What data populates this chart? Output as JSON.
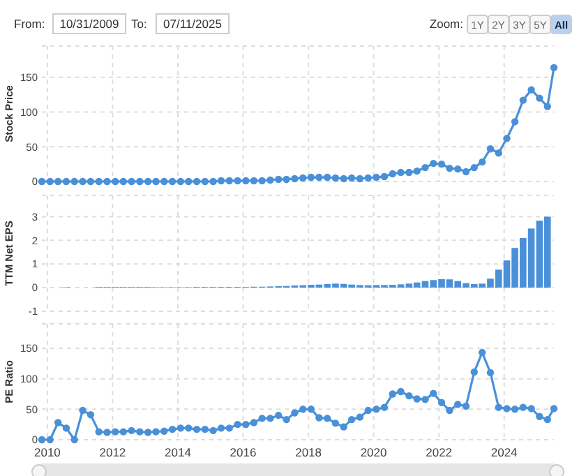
{
  "chart_data": [
    {
      "type": "line",
      "ylabel": "Stock Price",
      "color": "#4a90d9",
      "marker": "circle",
      "grid": true,
      "tick_labels": "y",
      "annotations": [
        "From:",
        "10/31/2009",
        "To:",
        "07/11/2025",
        "Zoom:",
        "1Y",
        "2Y",
        "3Y",
        "5Y",
        "All"
      ],
      "x": [
        "2009-10-31",
        "2010-01-31",
        "2010-04-30",
        "2010-07-31",
        "2010-10-31",
        "2011-01-31",
        "2011-04-30",
        "2011-07-31",
        "2011-10-31",
        "2012-01-31",
        "2012-04-30",
        "2012-07-31",
        "2012-10-31",
        "2013-01-31",
        "2013-04-30",
        "2013-07-31",
        "2013-10-31",
        "2014-01-31",
        "2014-04-30",
        "2014-07-31",
        "2014-10-31",
        "2015-01-31",
        "2015-04-30",
        "2015-07-31",
        "2015-10-31",
        "2016-01-31",
        "2016-04-30",
        "2016-07-31",
        "2016-10-31",
        "2017-01-31",
        "2017-04-30",
        "2017-07-31",
        "2017-10-31",
        "2018-01-31",
        "2018-04-30",
        "2018-07-31",
        "2018-10-31",
        "2019-01-31",
        "2019-04-30",
        "2019-07-31",
        "2019-10-31",
        "2020-01-31",
        "2020-04-30",
        "2020-07-31",
        "2020-10-31",
        "2021-01-31",
        "2021-04-30",
        "2021-07-31",
        "2021-10-31",
        "2022-01-31",
        "2022-04-30",
        "2022-07-31",
        "2022-10-31",
        "2023-01-31",
        "2023-04-30",
        "2023-07-31",
        "2023-10-31",
        "2024-01-31",
        "2024-04-30",
        "2024-07-31",
        "2024-10-31",
        "2025-01-31",
        "2025-04-30",
        "2025-07-11"
      ],
      "values": [
        0,
        0,
        0,
        0,
        0,
        0,
        0,
        0,
        0,
        0,
        0,
        0,
        0,
        0,
        0,
        0,
        0,
        0,
        0,
        0,
        0,
        0,
        1,
        1,
        1,
        1,
        1,
        1,
        2,
        3,
        3,
        4,
        5,
        6,
        6,
        6,
        5,
        4,
        5,
        4,
        5,
        6,
        7,
        11,
        13,
        13,
        15,
        20,
        26,
        25,
        19,
        18,
        14,
        20,
        28,
        47,
        41,
        62,
        86,
        117,
        132,
        120,
        108,
        164
      ],
      "xlim": [
        "2009-10-31",
        "2025-07-11"
      ],
      "xticks": [
        "2010",
        "2012",
        "2014",
        "2016",
        "2018",
        "2020",
        "2022",
        "2024"
      ],
      "ylim": [
        0,
        195
      ],
      "yticks": [
        0,
        50,
        100,
        150
      ]
    },
    {
      "type": "bar",
      "ylabel": "TTM Net EPS",
      "color": "#4a90d9",
      "grid": true,
      "tick_labels": "y",
      "x": [
        "2010-07-31",
        "2010-10-31",
        "2011-01-31",
        "2011-04-30",
        "2011-07-31",
        "2011-10-31",
        "2012-01-31",
        "2012-04-30",
        "2012-07-31",
        "2012-10-31",
        "2013-01-31",
        "2013-04-30",
        "2013-07-31",
        "2013-10-31",
        "2014-01-31",
        "2014-04-30",
        "2014-07-31",
        "2014-10-31",
        "2015-01-31",
        "2015-04-30",
        "2015-07-31",
        "2015-10-31",
        "2016-01-31",
        "2016-04-30",
        "2016-07-31",
        "2016-10-31",
        "2017-01-31",
        "2017-04-30",
        "2017-07-31",
        "2017-10-31",
        "2018-01-31",
        "2018-04-30",
        "2018-07-31",
        "2018-10-31",
        "2019-01-31",
        "2019-04-30",
        "2019-07-31",
        "2019-10-31",
        "2020-01-31",
        "2020-04-30",
        "2020-07-31",
        "2020-10-31",
        "2021-01-31",
        "2021-04-30",
        "2021-07-31",
        "2021-10-31",
        "2022-01-31",
        "2022-04-30",
        "2022-07-31",
        "2022-10-31",
        "2023-01-31",
        "2023-04-30",
        "2023-07-31",
        "2023-10-31",
        "2024-01-31",
        "2024-04-30",
        "2024-07-31",
        "2024-10-31",
        "2025-01-31",
        "2025-04-30"
      ],
      "values": [
        0.02,
        null,
        null,
        null,
        0.03,
        0.03,
        0.03,
        0.03,
        0.03,
        0.03,
        0.03,
        0.02,
        0.02,
        0.02,
        0.02,
        0.02,
        0.03,
        0.03,
        0.03,
        0.03,
        0.03,
        0.03,
        0.03,
        0.04,
        0.04,
        0.05,
        0.06,
        0.07,
        0.09,
        0.1,
        0.12,
        0.13,
        0.15,
        0.17,
        0.16,
        0.13,
        0.11,
        0.1,
        0.11,
        0.11,
        0.12,
        0.14,
        0.17,
        0.22,
        0.28,
        0.32,
        0.36,
        0.35,
        0.28,
        0.19,
        0.15,
        0.17,
        0.38,
        0.76,
        1.15,
        1.68,
        2.1,
        2.5,
        2.83,
        3.0
      ],
      "xlim": [
        "2009-10-31",
        "2025-07-11"
      ],
      "xticks": [
        "2010",
        "2012",
        "2014",
        "2016",
        "2018",
        "2020",
        "2022",
        "2024"
      ],
      "ylim": [
        -1,
        3.9
      ],
      "yticks": [
        -1,
        0,
        1,
        2,
        3
      ]
    },
    {
      "type": "line",
      "ylabel": "PE Ratio",
      "color": "#4a90d9",
      "marker": "circle",
      "grid": true,
      "x": [
        "2009-10-31",
        "2010-01-31",
        "2010-04-30",
        "2010-07-31",
        "2010-10-31",
        "2011-01-31",
        "2011-04-30",
        "2011-07-31",
        "2011-10-31",
        "2012-01-31",
        "2012-04-30",
        "2012-07-31",
        "2012-10-31",
        "2013-01-31",
        "2013-04-30",
        "2013-07-31",
        "2013-10-31",
        "2014-01-31",
        "2014-04-30",
        "2014-07-31",
        "2014-10-31",
        "2015-01-31",
        "2015-04-30",
        "2015-07-31",
        "2015-10-31",
        "2016-01-31",
        "2016-04-30",
        "2016-07-31",
        "2016-10-31",
        "2017-01-31",
        "2017-04-30",
        "2017-07-31",
        "2017-10-31",
        "2018-01-31",
        "2018-04-30",
        "2018-07-31",
        "2018-10-31",
        "2019-01-31",
        "2019-04-30",
        "2019-07-31",
        "2019-10-31",
        "2020-01-31",
        "2020-04-30",
        "2020-07-31",
        "2020-10-31",
        "2021-01-31",
        "2021-04-30",
        "2021-07-31",
        "2021-10-31",
        "2022-01-31",
        "2022-04-30",
        "2022-07-31",
        "2022-10-31",
        "2023-01-31",
        "2023-04-30",
        "2023-07-31",
        "2023-10-31",
        "2024-01-31",
        "2024-04-30",
        "2024-07-31",
        "2024-10-31",
        "2025-01-31",
        "2025-04-30",
        "2025-07-11"
      ],
      "values": [
        0,
        0,
        28,
        19,
        0,
        48,
        41,
        13,
        12,
        13,
        13,
        15,
        13,
        12,
        13,
        14,
        17,
        19,
        19,
        17,
        17,
        15,
        19,
        19,
        25,
        25,
        28,
        35,
        35,
        40,
        33,
        44,
        50,
        50,
        36,
        35,
        27,
        21,
        33,
        37,
        48,
        50,
        53,
        75,
        79,
        72,
        67,
        66,
        76,
        61,
        48,
        58,
        55,
        111,
        143,
        110,
        53,
        51,
        50,
        53,
        51,
        38,
        33,
        51
      ],
      "xlim": [
        "2009-10-31",
        "2025-07-11"
      ],
      "xticks": [
        "2010",
        "2012",
        "2014",
        "2016",
        "2018",
        "2020",
        "2022",
        "2024"
      ],
      "ylim": [
        0,
        190
      ],
      "yticks": [
        0,
        50,
        100,
        150
      ]
    }
  ]
}
